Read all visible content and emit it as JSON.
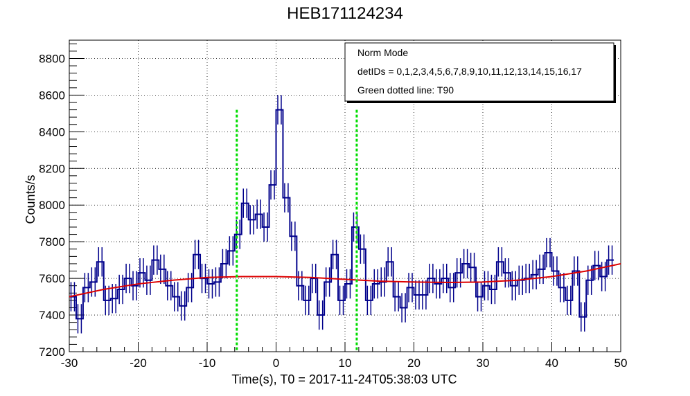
{
  "chart_data": {
    "type": "line",
    "title": "HEB171124234",
    "xlabel": "Time(s), T0 = 2017-11-24T05:38:03 UTC",
    "ylabel": "Counts/s",
    "xlim": [
      -30,
      50
    ],
    "ylim": [
      7200,
      8900
    ],
    "x_ticks": [
      -30,
      -20,
      -10,
      0,
      10,
      20,
      30,
      40,
      50
    ],
    "y_ticks": [
      7200,
      7400,
      7600,
      7800,
      8000,
      8200,
      8400,
      8600,
      8800
    ],
    "grid": true,
    "legend": {
      "position": "top-right",
      "lines": [
        "Norm Mode",
        "detIDs = 0,1,2,3,4,5,6,7,8,9,10,11,12,13,14,15,16,17",
        "Green dotted line: T90"
      ]
    },
    "series": [
      {
        "type": "histogram",
        "bin_width": 0.5,
        "x_start": -30,
        "color": "#00008b",
        "error": 80,
        "values": [
          7500,
          7500,
          7380,
          7380,
          7550,
          7550,
          7580,
          7580,
          7690,
          7690,
          7480,
          7480,
          7490,
          7490,
          7540,
          7540,
          7600,
          7600,
          7560,
          7560,
          7630,
          7630,
          7590,
          7590,
          7700,
          7700,
          7650,
          7650,
          7560,
          7560,
          7500,
          7500,
          7450,
          7450,
          7550,
          7550,
          7730,
          7730,
          7600,
          7600,
          7570,
          7570,
          7580,
          7580,
          7680,
          7680,
          7750,
          7750,
          7840,
          7840,
          8010,
          8010,
          7920,
          7920,
          7950,
          7950,
          7880,
          7880,
          8110,
          8110,
          8520,
          8520,
          8040,
          8040,
          7830,
          7830,
          7560,
          7560,
          7480,
          7480,
          7600,
          7600,
          7400,
          7400,
          7580,
          7580,
          7730,
          7730,
          7480,
          7480,
          7570,
          7570,
          7880,
          7880,
          7760,
          7760,
          7480,
          7480,
          7570,
          7570,
          7580,
          7580,
          7690,
          7690,
          7500,
          7500,
          7440,
          7440,
          7550,
          7550,
          7510,
          7510,
          7510,
          7510,
          7600,
          7600,
          7570,
          7570,
          7600,
          7600,
          7550,
          7550,
          7630,
          7630,
          7680,
          7680,
          7660,
          7660,
          7500,
          7500,
          7560,
          7560,
          7540,
          7540,
          7690,
          7690,
          7630,
          7630,
          7560,
          7560,
          7590,
          7590,
          7600,
          7600,
          7620,
          7620,
          7650,
          7650,
          7740,
          7740,
          7640,
          7640,
          7550,
          7550,
          7480,
          7480,
          7640,
          7640,
          7390,
          7390,
          7590,
          7590,
          7670,
          7670,
          7610,
          7610,
          7700,
          7700
        ]
      },
      {
        "type": "line",
        "name": "background",
        "color": "#dd0000",
        "x": [
          -30,
          -25,
          -20,
          -15,
          -10,
          -5,
          0,
          5,
          10,
          15,
          20,
          25,
          30,
          35,
          40,
          45,
          50
        ],
        "values": [
          7500,
          7540,
          7570,
          7590,
          7605,
          7610,
          7610,
          7605,
          7595,
          7585,
          7580,
          7578,
          7580,
          7590,
          7610,
          7640,
          7680
        ]
      }
    ],
    "t90_markers": {
      "color": "#00dd00",
      "x": [
        -5.7,
        11.7
      ],
      "y_top": 8520
    }
  }
}
